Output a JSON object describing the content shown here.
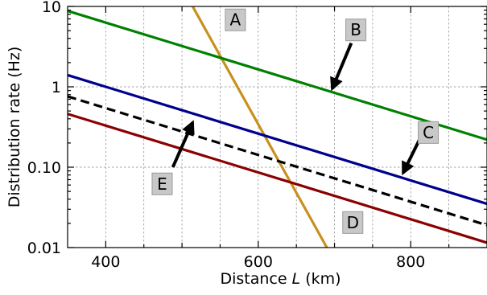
{
  "chart_data": {
    "type": "line",
    "xlabel": "Distance L (km)",
    "xlabel_parts": {
      "pre": "Distance ",
      "var": "L",
      "post": " (km)"
    },
    "ylabel": "Distribution rate (Hz)",
    "xlim": [
      350,
      900
    ],
    "ylim": [
      0.01,
      10
    ],
    "yscale": "log",
    "grid": true,
    "x_ticks": [
      400,
      600,
      800
    ],
    "x_tick_labels": [
      "400",
      "600",
      "800"
    ],
    "x_minor_ticks": [
      500,
      700
    ],
    "y_ticks": [
      0.01,
      0.1,
      1,
      10
    ],
    "y_tick_labels": [
      "0.01",
      "0.10",
      "1",
      "10"
    ],
    "series": [
      {
        "name": "A",
        "color": "#c8901e",
        "dash": false,
        "x": [
          514,
          690
        ],
        "y": [
          10,
          0.01
        ]
      },
      {
        "name": "B",
        "color": "#008000",
        "dash": false,
        "x": [
          350,
          900
        ],
        "y": [
          8.8,
          0.22
        ]
      },
      {
        "name": "C",
        "color": "#00008b",
        "dash": false,
        "x": [
          350,
          900
        ],
        "y": [
          1.4,
          0.035
        ]
      },
      {
        "name": "D",
        "color": "#8b0000",
        "dash": false,
        "x": [
          350,
          900
        ],
        "y": [
          0.46,
          0.0115
        ]
      },
      {
        "name": "E",
        "color": "#000000",
        "dash": true,
        "x": [
          350,
          900
        ],
        "y": [
          0.76,
          0.019
        ]
      }
    ],
    "annotations": [
      {
        "label": "A",
        "x": 570,
        "y": 6.8,
        "arrow": false
      },
      {
        "label": "B",
        "x": 728,
        "y": 5.1,
        "arrow": true,
        "arrow_from": [
          722,
          3.5
        ],
        "arrow_to": [
          697,
          0.95
        ]
      },
      {
        "label": "C",
        "x": 823,
        "y": 0.27,
        "arrow": true,
        "arrow_from": [
          816,
          0.27
        ],
        "arrow_to": [
          790,
          0.085
        ]
      },
      {
        "label": "D",
        "x": 724,
        "y": 0.0205,
        "arrow": false
      },
      {
        "label": "E",
        "x": 474,
        "y": 0.062,
        "arrow": true,
        "arrow_from": [
          488,
          0.1
        ],
        "arrow_to": [
          514,
          0.36
        ]
      }
    ]
  }
}
